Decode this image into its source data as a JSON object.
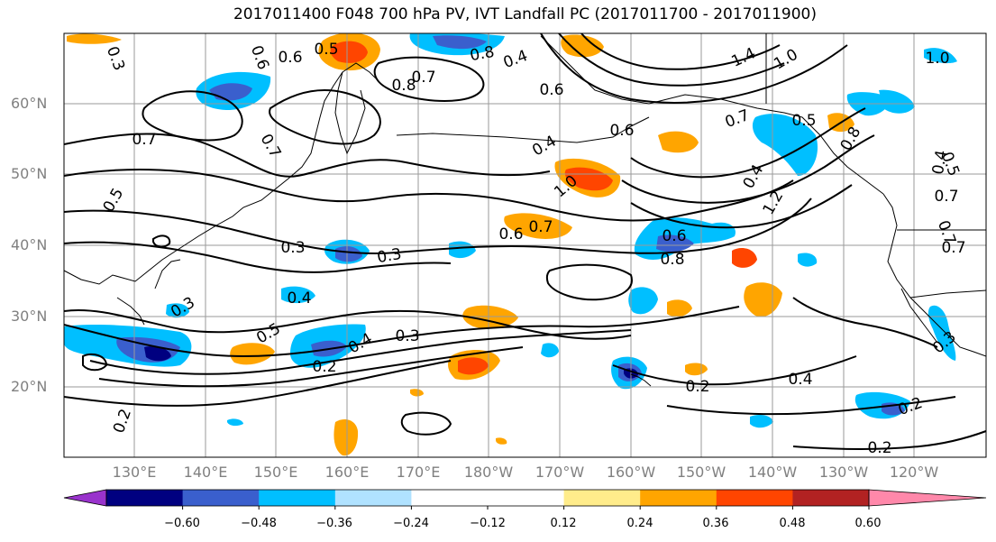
{
  "title": "2017011400 F048 700 hPa PV, IVT Landfall PC (2017011700 - 2017011900)",
  "lat_labels": [
    "60°N",
    "50°N",
    "40°N",
    "30°N",
    "20°N"
  ],
  "lon_labels": [
    "130°E",
    "140°E",
    "150°E",
    "160°E",
    "170°E",
    "180°W",
    "170°W",
    "160°W",
    "150°W",
    "140°W",
    "130°W",
    "120°W"
  ],
  "colorbar": {
    "colors": [
      "#9933cc",
      "#000080",
      "#3a5fcd",
      "#00bfff",
      "#b0e2ff",
      "#ffffff",
      "#ffffff",
      "#ffec8b",
      "#ffa500",
      "#ff4500",
      "#b22222",
      "#ff88aa"
    ],
    "ticks": [
      "−0.60",
      "−0.48",
      "−0.36",
      "−0.24",
      "−0.12",
      "0.12",
      "0.24",
      "0.36",
      "0.48",
      "0.60"
    ]
  },
  "contour_labels": [
    "0.6",
    "0.5",
    "0.8",
    "0.4",
    "0.7",
    "0.6",
    "1.4",
    "1.0",
    "1.0",
    "0.8",
    "0.7",
    "0.4",
    "0.6",
    "0.7",
    "0.8",
    "1.0",
    "0.5",
    "0.4",
    "0.4",
    "1.2",
    "0.5",
    "0.3",
    "0.3",
    "0.6",
    "0.7",
    "0.6",
    "0.7",
    "0.7",
    "0.6",
    "0.7",
    "0.8",
    "0.4",
    "0.3",
    "0.5",
    "0.3",
    "0.4",
    "0.2",
    "0.4",
    "0.2",
    "0.2",
    "0.2",
    "0.2",
    "0.3",
    "0.7",
    "0.5",
    "0.3"
  ]
}
